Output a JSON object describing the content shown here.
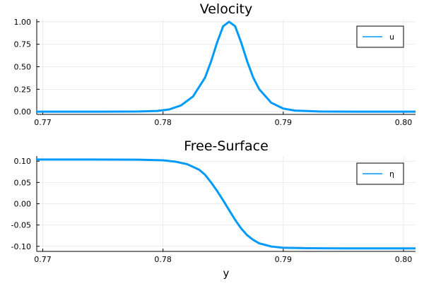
{
  "chart_data": [
    {
      "type": "line",
      "title": "Velocity",
      "xlabel": "",
      "ylabel": "",
      "xlim": [
        0.7695,
        0.801
      ],
      "ylim": [
        -0.03,
        1.03
      ],
      "xticks": [
        0.77,
        0.78,
        0.79,
        0.8
      ],
      "xtick_labels": [
        "0.77",
        "0.78",
        "0.79",
        "0.80"
      ],
      "yticks": [
        0.0,
        0.25,
        0.5,
        0.75,
        1.0
      ],
      "ytick_labels": [
        "0.00",
        "0.25",
        "0.50",
        "0.75",
        "1.00"
      ],
      "grid": true,
      "legend": "top-right",
      "series": [
        {
          "name": "u",
          "color": "#009af9",
          "x": [
            0.7695,
            0.772,
            0.775,
            0.778,
            0.7795,
            0.7805,
            0.7815,
            0.7825,
            0.7835,
            0.784,
            0.7845,
            0.785,
            0.7855,
            0.786,
            0.7865,
            0.787,
            0.7875,
            0.788,
            0.789,
            0.79,
            0.791,
            0.793,
            0.796,
            0.799,
            0.801
          ],
          "y": [
            0.0,
            0.0,
            0.0,
            0.002,
            0.008,
            0.025,
            0.07,
            0.17,
            0.38,
            0.56,
            0.77,
            0.95,
            1.0,
            0.95,
            0.77,
            0.56,
            0.38,
            0.25,
            0.1,
            0.035,
            0.012,
            0.002,
            0.0,
            0.0,
            0.0
          ]
        }
      ]
    },
    {
      "type": "line",
      "title": "Free-Surface",
      "xlabel": "y",
      "ylabel": "",
      "xlim": [
        0.7695,
        0.801
      ],
      "ylim": [
        -0.112,
        0.112
      ],
      "xticks": [
        0.77,
        0.78,
        0.79,
        0.8
      ],
      "xtick_labels": [
        "0.77",
        "0.78",
        "0.79",
        "0.80"
      ],
      "yticks": [
        0.1,
        0.05,
        0.0,
        -0.05,
        -0.1
      ],
      "ytick_labels": [
        "0.10",
        "0.05",
        "0.00",
        "-0.05",
        "-0.10"
      ],
      "grid": true,
      "legend": "top-right",
      "series": [
        {
          "name": "η",
          "color": "#009af9",
          "x": [
            0.7695,
            0.774,
            0.778,
            0.78,
            0.781,
            0.782,
            0.783,
            0.7835,
            0.784,
            0.7845,
            0.785,
            0.7855,
            0.786,
            0.7865,
            0.787,
            0.7875,
            0.788,
            0.789,
            0.79,
            0.792,
            0.795,
            0.801
          ],
          "y": [
            0.104,
            0.104,
            0.1035,
            0.102,
            0.099,
            0.093,
            0.08,
            0.068,
            0.05,
            0.03,
            0.008,
            -0.015,
            -0.038,
            -0.058,
            -0.074,
            -0.085,
            -0.093,
            -0.1005,
            -0.1035,
            -0.1045,
            -0.105,
            -0.105
          ]
        }
      ]
    }
  ]
}
